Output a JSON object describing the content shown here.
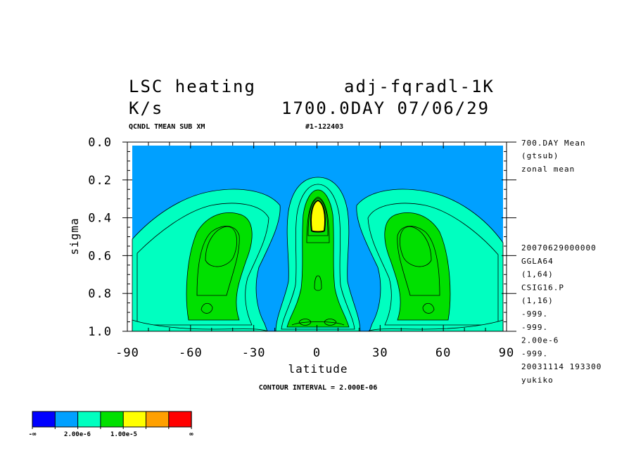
{
  "header": {
    "title_left": "LSC heating",
    "title_right": "adj-fqradl-1K",
    "units": "K/s",
    "time": "1700.0DAY 07/06/29",
    "var_desc": "QCNDL TMEAN SUB XM",
    "run_id": "#1-122403"
  },
  "side_info": {
    "top": [
      "700.DAY Mean",
      "(gtsub)",
      "zonal mean"
    ],
    "bottom": [
      "20070629000000",
      "GGLA64",
      "(1,64)",
      "CSIG16.P",
      "(1,16)",
      "-999.",
      "-999.",
      "2.00e-6",
      "-999.",
      "20031114 193300",
      "yukiko"
    ]
  },
  "footer": {
    "contour_interval": "CONTOUR INTERVAL = 2.000E-06"
  },
  "colorbar": {
    "colors": [
      "#0000ff",
      "#00a0ff",
      "#00ffc0",
      "#00e000",
      "#ffff00",
      "#ffa000",
      "#ff0000"
    ],
    "labels": [
      "-∞",
      "2.00e-6",
      "1.00e-5",
      "∞"
    ]
  },
  "chart_data": {
    "type": "contour",
    "xlabel": "latitude",
    "ylabel": "sigma",
    "xlim": [
      -90,
      90
    ],
    "ylim": [
      1.0,
      0.0
    ],
    "x_ticks": [
      -90,
      -60,
      -30,
      0,
      30,
      60,
      90
    ],
    "x_tick_labels": [
      "-90",
      "-60",
      "-30",
      "0",
      "30",
      "60",
      "90"
    ],
    "y_ticks": [
      0.0,
      0.2,
      0.4,
      0.6,
      0.8,
      1.0
    ],
    "y_tick_labels": [
      "0.0",
      "0.2",
      "0.4",
      "0.6",
      "0.8",
      "1.0"
    ],
    "contour_interval": 2e-06,
    "levels": [
      2e-06,
      4e-06,
      6e-06,
      8e-06,
      1e-05,
      1.2e-05
    ],
    "features": [
      {
        "kind": "equatorial-column",
        "lat": 0,
        "sigma_peak": 0.37,
        "max_level": 1.2e-05
      },
      {
        "kind": "midlatitude-lobe",
        "lat": -45,
        "sigma_peak": 0.55,
        "max_level": 8e-06
      },
      {
        "kind": "midlatitude-lobe",
        "lat": 45,
        "sigma_peak": 0.55,
        "max_level": 8e-06
      }
    ]
  }
}
